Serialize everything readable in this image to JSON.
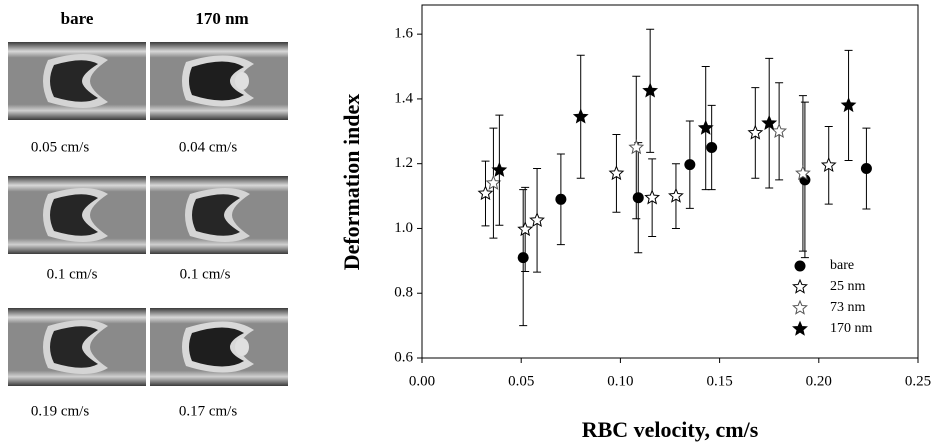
{
  "figure": {
    "column_labels": [
      "bare",
      "170 nm"
    ],
    "image_captions": [
      [
        "0.05 cm/s",
        "0.04 cm/s"
      ],
      [
        "0.1 cm/s",
        "0.1 cm/s"
      ],
      [
        "0.19 cm/s",
        "0.17 cm/s"
      ]
    ]
  },
  "chart_data": {
    "type": "scatter",
    "x_label": "RBC velocity, cm/s",
    "y_label": "Deformation index",
    "xlim": [
      0,
      0.25
    ],
    "ylim": [
      0.6,
      1.69
    ],
    "xticks": [
      {
        "value": 0,
        "label": "0.00"
      },
      0.05,
      {
        "value": 0.1,
        "label": "0.10"
      },
      0.15,
      {
        "value": 0.2,
        "label": "0.20"
      },
      0.25
    ],
    "yticks": [
      0.6,
      0.8,
      {
        "value": 1,
        "label": "1.0"
      },
      1.2,
      1.4,
      1.6
    ],
    "legend": "lower right",
    "series": [
      {
        "name": "bare",
        "marker": "circle",
        "color": "#000000",
        "x": [
          0.051,
          0.07,
          0.109,
          0.135,
          0.146,
          0.193,
          0.224
        ],
        "values": [
          0.91,
          1.09,
          1.095,
          1.197,
          1.25,
          1.15,
          1.185
        ],
        "errors": [
          0.21,
          0.14,
          0.17,
          0.135,
          0.13,
          0.24,
          0.125
        ]
      },
      {
        "name": "25 nm",
        "marker": "open-star",
        "color": "#000000",
        "x": [
          0.032,
          0.052,
          0.058,
          0.098,
          0.116,
          0.128,
          0.168,
          0.205
        ],
        "values": [
          1.108,
          0.997,
          1.025,
          1.17,
          1.095,
          1.1,
          1.295,
          1.195
        ],
        "errors": [
          0.1,
          0.13,
          0.16,
          0.12,
          0.12,
          0.1,
          0.14,
          0.12
        ]
      },
      {
        "name": "73 nm",
        "marker": "open-star",
        "color": "#555555",
        "x": [
          0.036,
          0.108,
          0.18,
          0.192
        ],
        "values": [
          1.14,
          1.25,
          1.3,
          1.17
        ],
        "errors": [
          0.17,
          0.22,
          0.15,
          0.24
        ]
      },
      {
        "name": "170 nm",
        "marker": "star",
        "color": "#000000",
        "x": [
          0.039,
          0.08,
          0.115,
          0.143,
          0.175,
          0.215
        ],
        "values": [
          1.18,
          1.345,
          1.425,
          1.31,
          1.325,
          1.38
        ],
        "errors": [
          0.17,
          0.19,
          0.19,
          0.19,
          0.2,
          0.17
        ]
      }
    ]
  }
}
